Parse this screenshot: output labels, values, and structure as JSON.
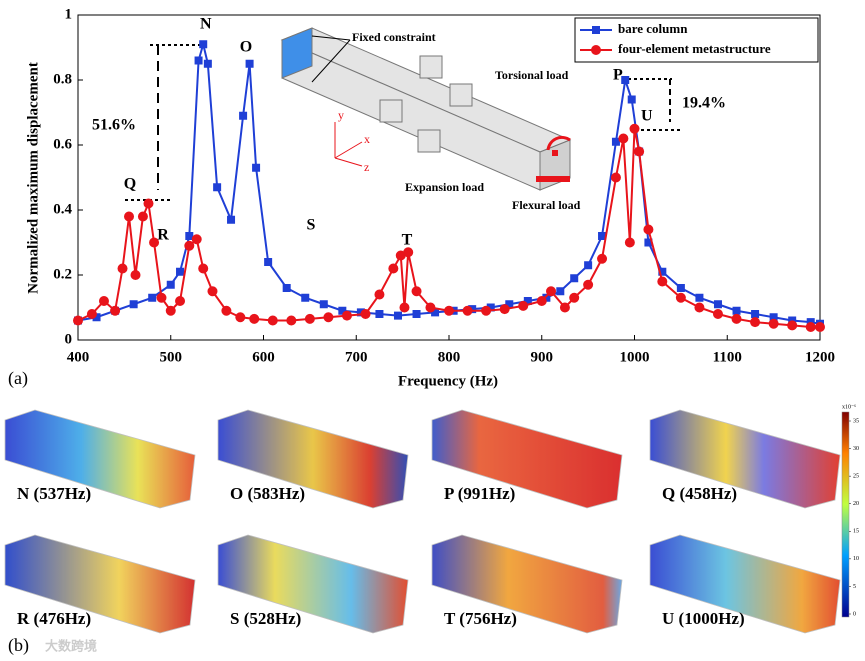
{
  "chart_data": {
    "type": "line",
    "xlabel": "Frequency (Hz)",
    "ylabel": "Normalized maximum displacement",
    "xlim": [
      400,
      1200
    ],
    "xticks": [
      400,
      500,
      600,
      700,
      800,
      900,
      1000,
      1100,
      1200
    ],
    "ylim": [
      0,
      1
    ],
    "yticks": [
      0,
      0.2,
      0.4,
      0.6,
      0.8,
      1
    ],
    "legend": "upper right",
    "series": [
      {
        "name": "bare column",
        "color": "#1f3fd6",
        "marker": "square",
        "x": [
          400,
          420,
          440,
          460,
          480,
          500,
          510,
          520,
          530,
          535,
          540,
          550,
          565,
          578,
          585,
          592,
          605,
          625,
          645,
          665,
          685,
          705,
          725,
          745,
          765,
          785,
          805,
          825,
          845,
          865,
          885,
          905,
          920,
          935,
          950,
          965,
          980,
          990,
          997,
          1005,
          1015,
          1030,
          1050,
          1070,
          1090,
          1110,
          1130,
          1150,
          1170,
          1190,
          1200
        ],
        "values": [
          0.06,
          0.07,
          0.09,
          0.11,
          0.13,
          0.17,
          0.21,
          0.32,
          0.86,
          0.91,
          0.85,
          0.47,
          0.37,
          0.69,
          0.85,
          0.53,
          0.24,
          0.16,
          0.13,
          0.11,
          0.09,
          0.085,
          0.08,
          0.075,
          0.08,
          0.085,
          0.09,
          0.095,
          0.1,
          0.11,
          0.12,
          0.13,
          0.15,
          0.19,
          0.23,
          0.32,
          0.61,
          0.8,
          0.74,
          0.58,
          0.3,
          0.21,
          0.16,
          0.13,
          0.11,
          0.09,
          0.08,
          0.07,
          0.06,
          0.055,
          0.05
        ]
      },
      {
        "name": "four-element metastructure",
        "color": "#e8141b",
        "marker": "circle",
        "x": [
          400,
          415,
          428,
          440,
          448,
          455,
          462,
          470,
          476,
          482,
          490,
          500,
          510,
          520,
          528,
          535,
          545,
          560,
          575,
          590,
          610,
          630,
          650,
          670,
          690,
          710,
          725,
          740,
          748,
          752,
          756,
          765,
          780,
          800,
          820,
          840,
          860,
          880,
          900,
          910,
          925,
          935,
          950,
          965,
          980,
          988,
          995,
          1000,
          1005,
          1015,
          1030,
          1050,
          1070,
          1090,
          1110,
          1130,
          1150,
          1170,
          1190,
          1200
        ],
        "values": [
          0.06,
          0.08,
          0.12,
          0.09,
          0.22,
          0.38,
          0.2,
          0.38,
          0.42,
          0.3,
          0.13,
          0.09,
          0.12,
          0.29,
          0.31,
          0.22,
          0.15,
          0.09,
          0.07,
          0.065,
          0.06,
          0.06,
          0.065,
          0.07,
          0.075,
          0.08,
          0.14,
          0.22,
          0.26,
          0.1,
          0.27,
          0.15,
          0.1,
          0.09,
          0.09,
          0.09,
          0.095,
          0.105,
          0.12,
          0.15,
          0.1,
          0.13,
          0.17,
          0.25,
          0.5,
          0.62,
          0.3,
          0.65,
          0.58,
          0.34,
          0.18,
          0.13,
          0.1,
          0.08,
          0.065,
          0.055,
          0.05,
          0.045,
          0.04,
          0.04
        ]
      }
    ],
    "annotations": {
      "N": "N",
      "O": "O",
      "P": "P",
      "Q": "Q",
      "R": "R",
      "S": "S",
      "T": "T",
      "U": "U",
      "drop_left": "51.6%",
      "drop_right": "19.4%"
    },
    "inset": {
      "fixed": "Fixed constraint",
      "torsional": "Torsional load",
      "expansion": "Expansion load",
      "flexural": "Flexural load",
      "x": "x",
      "y": "y",
      "z": "z"
    },
    "tag": "(a)"
  },
  "modes": {
    "tag": "(b)",
    "panels": [
      "N (537Hz)",
      "O (583Hz)",
      "P (991Hz)",
      "Q (458Hz)",
      "R (476Hz)",
      "S (528Hz)",
      "T (756Hz)",
      "U (1000Hz)"
    ],
    "colorbar": {
      "exponent": "x10⁻⁶",
      "ticks": [
        0,
        5,
        10,
        15,
        20,
        25,
        30,
        35
      ]
    }
  },
  "watermark": "大数跨境"
}
